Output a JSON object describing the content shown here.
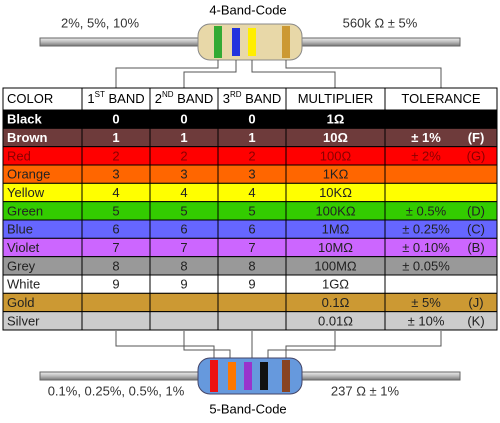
{
  "top": {
    "title": "4-Band-Code",
    "left": "2%, 5%, 10%",
    "right": "560k Ω  ± 5%"
  },
  "bottom": {
    "title": "5-Band-Code",
    "left": "0.1%, 0.25%, 0.5%, 1%",
    "right": "237 Ω  ± 1%"
  },
  "table": {
    "header": [
      {
        "text": "COLOR"
      },
      {
        "text": "1",
        "sup": "ST",
        "rest": " BAND"
      },
      {
        "text": "2",
        "sup": "ND",
        "rest": " BAND"
      },
      {
        "text": "3",
        "sup": "RD",
        "rest": " BAND"
      },
      {
        "text": "MULTIPLIER"
      },
      {
        "text": "TOLERANCE"
      }
    ],
    "rows": [
      {
        "name": "Black",
        "b1": "0",
        "b2": "0",
        "b3": "0",
        "mult": "1Ω",
        "bg": "#000000",
        "fg": "#ffffff",
        "bold": true
      },
      {
        "name": "Brown",
        "b1": "1",
        "b2": "1",
        "b3": "1",
        "mult": "10Ω",
        "tol": "± 1%",
        "code": "(F)",
        "bg": "#6e3b3b",
        "fg": "#ffffff",
        "bold": true
      },
      {
        "name": "Red",
        "b1": "2",
        "b2": "2",
        "b3": "2",
        "mult": "100Ω",
        "tol": "± 2%",
        "code": "(G)",
        "bg": "#ff0000",
        "fg": "#8a0000"
      },
      {
        "name": "Orange",
        "b1": "3",
        "b2": "3",
        "b3": "3",
        "mult": "1KΩ",
        "bg": "#ff6600",
        "fg": "#222222"
      },
      {
        "name": "Yellow",
        "b1": "4",
        "b2": "4",
        "b3": "4",
        "mult": "10KΩ",
        "bg": "#ffff00",
        "fg": "#222222"
      },
      {
        "name": "Green",
        "b1": "5",
        "b2": "5",
        "b3": "5",
        "mult": "100KΩ",
        "tol": "± 0.5%",
        "code": "(D)",
        "bg": "#33cc00",
        "fg": "#222222"
      },
      {
        "name": "Blue",
        "b1": "6",
        "b2": "6",
        "b3": "6",
        "mult": "1MΩ",
        "tol": "± 0.25%",
        "code": "(C)",
        "bg": "#6666ff",
        "fg": "#222222"
      },
      {
        "name": "Violet",
        "b1": "7",
        "b2": "7",
        "b3": "7",
        "mult": "10MΩ",
        "tol": "± 0.10%",
        "code": "(B)",
        "bg": "#cc66ff",
        "fg": "#222222"
      },
      {
        "name": "Grey",
        "b1": "8",
        "b2": "8",
        "b3": "8",
        "mult": "100MΩ",
        "tol": "± 0.05%",
        "bg": "#999999",
        "fg": "#222222"
      },
      {
        "name": "White",
        "b1": "9",
        "b2": "9",
        "b3": "9",
        "mult": "1GΩ",
        "bg": "#ffffff",
        "fg": "#222222"
      },
      {
        "name": "Gold",
        "mult": "0.1Ω",
        "tol": "± 5%",
        "code": "(J)",
        "bg": "#cc9933",
        "fg": "#222222"
      },
      {
        "name": "Silver",
        "mult": "0.01Ω",
        "tol": "± 10%",
        "code": "(K)",
        "bg": "#cccccc",
        "fg": "#222222"
      }
    ]
  }
}
